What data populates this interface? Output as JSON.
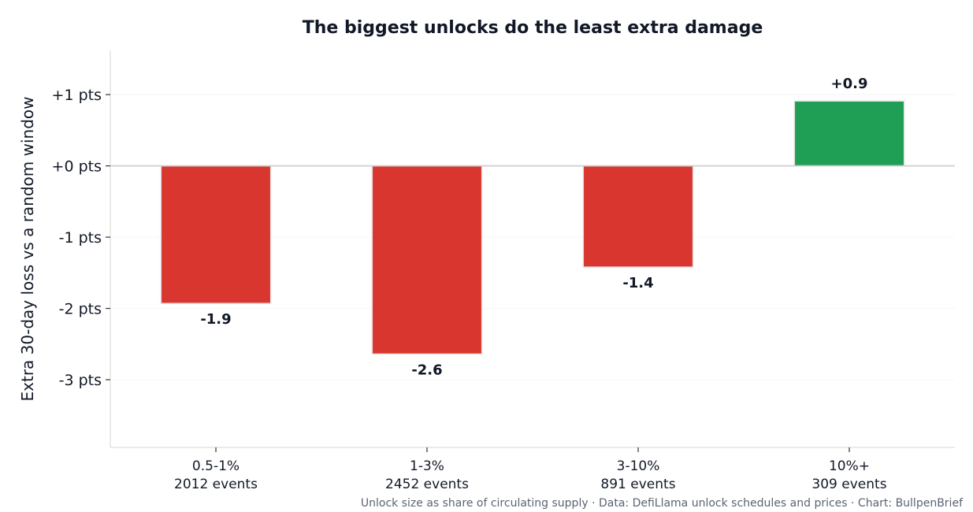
{
  "chart_data": {
    "type": "bar",
    "title": "The biggest unlocks do the least extra damage",
    "ylabel": "Extra 30-day loss vs a random window",
    "xlabel": "",
    "categories": [
      "0.5-1%",
      "1-3%",
      "3-10%",
      "10%+"
    ],
    "category_sublabels": [
      "2012 events",
      "2452 events",
      "891 events",
      "309 events"
    ],
    "values": [
      -1.93,
      -2.64,
      -1.42,
      0.91
    ],
    "data_labels": [
      "-1.9",
      "-2.6",
      "-1.4",
      "+0.9"
    ],
    "ylim": [
      -3.95,
      1.62
    ],
    "yticks": [
      1,
      0,
      -1,
      -2,
      -3
    ],
    "ytick_labels": [
      "+1 pts",
      "+0 pts",
      "-1 pts",
      "-2 pts",
      "-3 pts"
    ],
    "grid": true,
    "colors": {
      "negative": "#d9362f",
      "positive": "#1f9e55",
      "bar_edge": "#e3e3e3",
      "zero_line": "#cccccc",
      "grid": "#eeeeee"
    }
  },
  "footer": "Unlock size as share of circulating supply · Data: DefiLlama unlock schedules and prices · Chart: BullpenBrief"
}
